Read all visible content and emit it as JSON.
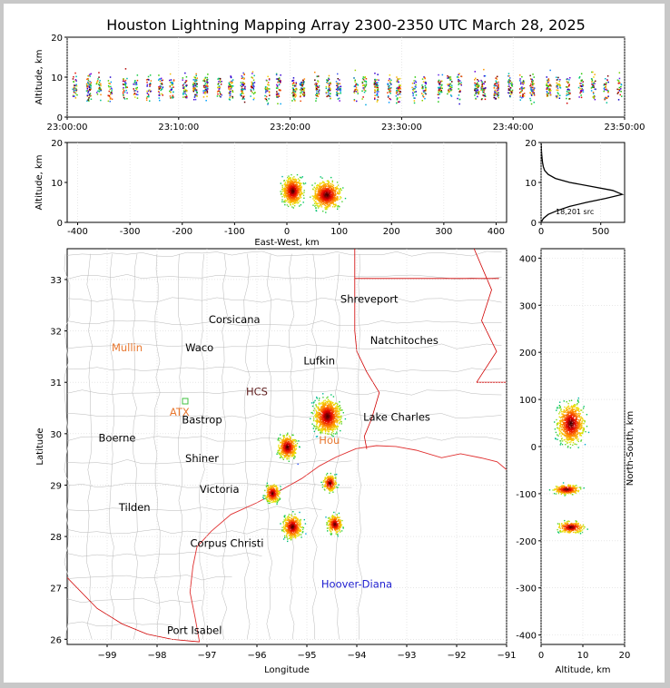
{
  "title": "Houston Lightning Mapping Array 2300-2350 UTC March 28, 2025",
  "colors": {
    "land": "#ffffff",
    "county_lines": "#b8b8b8",
    "state_lines": "#d00000",
    "coast": "#e03030",
    "grid": "#d8d8d8",
    "text": "#000000",
    "station_orange": "#e87830",
    "station_blue": "#2020d0",
    "histogram": "#000000"
  },
  "chart_data": [
    {
      "type": "scatter",
      "name": "time-altitude",
      "xlabel": "",
      "ylabel": "Altitude, km",
      "xlim": [
        "23:00:00",
        "23:50:00"
      ],
      "ylim": [
        0,
        20
      ],
      "x_ticks": [
        "23:00:00",
        "23:10:00",
        "23:20:00",
        "23:30:00",
        "23:40:00",
        "23:50:00"
      ],
      "y_ticks": [
        0,
        10,
        20
      ],
      "colormap": "time-rainbow"
    },
    {
      "type": "scatter",
      "name": "east-west-altitude",
      "xlabel": "East-West, km",
      "ylabel": "Altitude, km",
      "xlim": [
        -420,
        420
      ],
      "ylim": [
        0,
        20
      ],
      "x_ticks": [
        -400,
        -300,
        -200,
        -100,
        0,
        100,
        200,
        300,
        400
      ],
      "y_ticks": [
        0,
        10,
        20
      ],
      "clusters": [
        {
          "x": 10,
          "alt_peak": 8,
          "x_spread": 18
        },
        {
          "x": 75,
          "alt_peak": 7,
          "x_spread": 25
        }
      ]
    },
    {
      "type": "line",
      "name": "altitude-histogram",
      "xlabel": "",
      "ylabel": "",
      "xlim": [
        0,
        700
      ],
      "ylim": [
        0,
        20
      ],
      "x_ticks": [
        0,
        500
      ],
      "y_ticks": [
        0,
        10,
        20
      ],
      "annotation": "18,201 src",
      "profile": [
        {
          "alt": 0,
          "count": 0
        },
        {
          "alt": 1,
          "count": 20
        },
        {
          "alt": 2,
          "count": 60
        },
        {
          "alt": 3,
          "count": 140
        },
        {
          "alt": 4,
          "count": 240
        },
        {
          "alt": 5,
          "count": 380
        },
        {
          "alt": 6,
          "count": 540
        },
        {
          "alt": 7,
          "count": 680
        },
        {
          "alt": 8,
          "count": 600
        },
        {
          "alt": 9,
          "count": 420
        },
        {
          "alt": 10,
          "count": 240
        },
        {
          "alt": 11,
          "count": 120
        },
        {
          "alt": 12,
          "count": 60
        },
        {
          "alt": 13,
          "count": 30
        },
        {
          "alt": 14,
          "count": 18
        },
        {
          "alt": 15,
          "count": 12
        },
        {
          "alt": 16,
          "count": 8
        },
        {
          "alt": 17,
          "count": 5
        },
        {
          "alt": 18,
          "count": 3
        },
        {
          "alt": 19,
          "count": 2
        },
        {
          "alt": 20,
          "count": 0
        }
      ]
    },
    {
      "type": "scatter",
      "name": "plan-view-map",
      "xlabel": "Longitude",
      "ylabel": "Latitude",
      "xlim": [
        -99.8,
        -91.0
      ],
      "ylim": [
        25.9,
        33.6
      ],
      "x_ticks": [
        -99,
        -98,
        -97,
        -96,
        -95,
        -94,
        -93,
        -92,
        -91
      ],
      "y_ticks": [
        26,
        27,
        28,
        29,
        30,
        31,
        32,
        33
      ],
      "clusters": [
        {
          "lon": -94.6,
          "lat": 30.35,
          "size": 1.0
        },
        {
          "lon": -95.4,
          "lat": 29.75,
          "size": 0.5
        },
        {
          "lon": -95.3,
          "lat": 28.2,
          "size": 0.5
        },
        {
          "lon": -94.45,
          "lat": 28.25,
          "size": 0.3
        },
        {
          "lon": -95.7,
          "lat": 28.85,
          "size": 0.3
        },
        {
          "lon": -94.55,
          "lat": 29.05,
          "size": 0.25
        }
      ],
      "cities": [
        {
          "name": "Shreveport",
          "lon": -93.75,
          "lat": 32.55
        },
        {
          "name": "Corsicana",
          "lon": -96.45,
          "lat": 32.15
        },
        {
          "name": "Natchitoches",
          "lon": -93.05,
          "lat": 31.75
        },
        {
          "name": "Mullin",
          "lon": -98.6,
          "lat": 31.6
        },
        {
          "name": "Waco",
          "lon": -97.15,
          "lat": 31.6
        },
        {
          "name": "Lufkin",
          "lon": -94.75,
          "lat": 31.35
        },
        {
          "name": "HCS",
          "lon": -96.0,
          "lat": 30.75
        },
        {
          "name": "ATX",
          "lon": -97.55,
          "lat": 30.35
        },
        {
          "name": "Bastrop",
          "lon": -97.1,
          "lat": 30.2
        },
        {
          "name": "Lake Charles",
          "lon": -93.2,
          "lat": 30.25
        },
        {
          "name": "Boerne",
          "lon": -98.8,
          "lat": 29.85
        },
        {
          "name": "Hou",
          "lon": -94.55,
          "lat": 29.8
        },
        {
          "name": "Shiner",
          "lon": -97.1,
          "lat": 29.45
        },
        {
          "name": "Victoria",
          "lon": -96.75,
          "lat": 28.85
        },
        {
          "name": "Tilden",
          "lon": -98.45,
          "lat": 28.5
        },
        {
          "name": "Corpus Christi",
          "lon": -96.6,
          "lat": 27.8
        },
        {
          "name": "Hoover-Diana",
          "lon": -94.0,
          "lat": 27.0
        },
        {
          "name": "Port Isabel",
          "lon": -97.25,
          "lat": 26.1
        }
      ]
    },
    {
      "type": "scatter",
      "name": "altitude-north-south",
      "xlabel": "Altitude, km",
      "ylabel": "North-South, km",
      "xlim": [
        0,
        20
      ],
      "ylim": [
        -420,
        420
      ],
      "x_ticks": [
        0,
        10,
        20
      ],
      "y_ticks": [
        -400,
        -300,
        -200,
        -100,
        0,
        100,
        200,
        300,
        400
      ],
      "clusters": [
        {
          "ns": 50,
          "alt_peak": 7,
          "ns_spread": 40
        },
        {
          "ns": -90,
          "alt_peak": 6,
          "ns_spread": 10
        },
        {
          "ns": -170,
          "alt_peak": 7,
          "ns_spread": 12
        }
      ]
    }
  ],
  "labels": {
    "ns_axis": "North-South, km"
  }
}
